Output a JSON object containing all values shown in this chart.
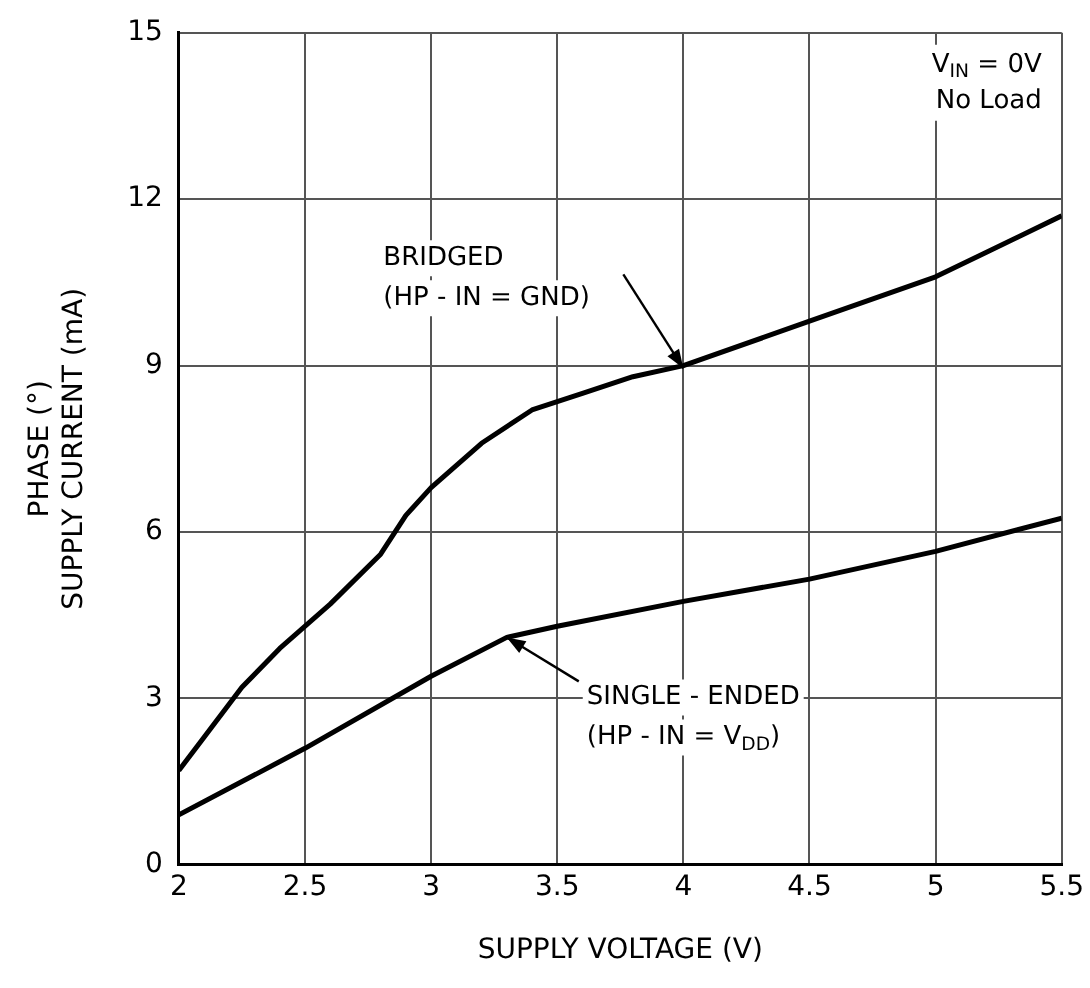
{
  "chart_data": {
    "type": "line",
    "xlabel": "SUPPLY VOLTAGE (V)",
    "ylabel": "PHASE (°)\nSUPPLY CURRENT (mA)",
    "xlim": [
      2,
      5.5
    ],
    "xticks": [
      2,
      2.5,
      3,
      3.5,
      4,
      4.5,
      5,
      {
        "value": 5.5,
        "label": "5.5"
      }
    ],
    "ylim": [
      0,
      15
    ],
    "yticks": [
      0,
      3,
      6,
      9,
      12,
      15
    ],
    "grid": true,
    "legend": false,
    "marker": "none",
    "line_style": "solid",
    "annotations": [
      "V$_{IN}$ = 0V\nNo Load",
      {
        "text": "BRIDGED\n(HP - IN = GND)",
        "x": 4,
        "y": 8.95
      },
      {
        "text": "SINGLE - ENDED\n(HP - IN = V$_{DD}$)",
        "x": 3.3,
        "y": 4.1
      }
    ],
    "series": [
      {
        "color": "#000000",
        "x": [
          2,
          2.1,
          2.25,
          2.4,
          2.6,
          2.8,
          2.9,
          3,
          3.2,
          3.4,
          3.6,
          3.8,
          4,
          4.5,
          5,
          5.5
        ],
        "values": [
          1.7,
          2.3,
          3.2,
          3.9,
          4.7,
          5.6,
          6.3,
          6.8,
          7.6,
          8.2,
          8.5,
          8.8,
          9,
          9.8,
          10.6,
          11.7
        ]
      },
      {
        "color": "#000000",
        "x": [
          2,
          2.5,
          3,
          3.3,
          3.5,
          4,
          4.5,
          5,
          5.5
        ],
        "values": [
          0.9,
          2.1,
          3.4,
          4.1,
          4.3,
          4.75,
          5.15,
          5.65,
          6.25
        ]
      }
    ]
  }
}
